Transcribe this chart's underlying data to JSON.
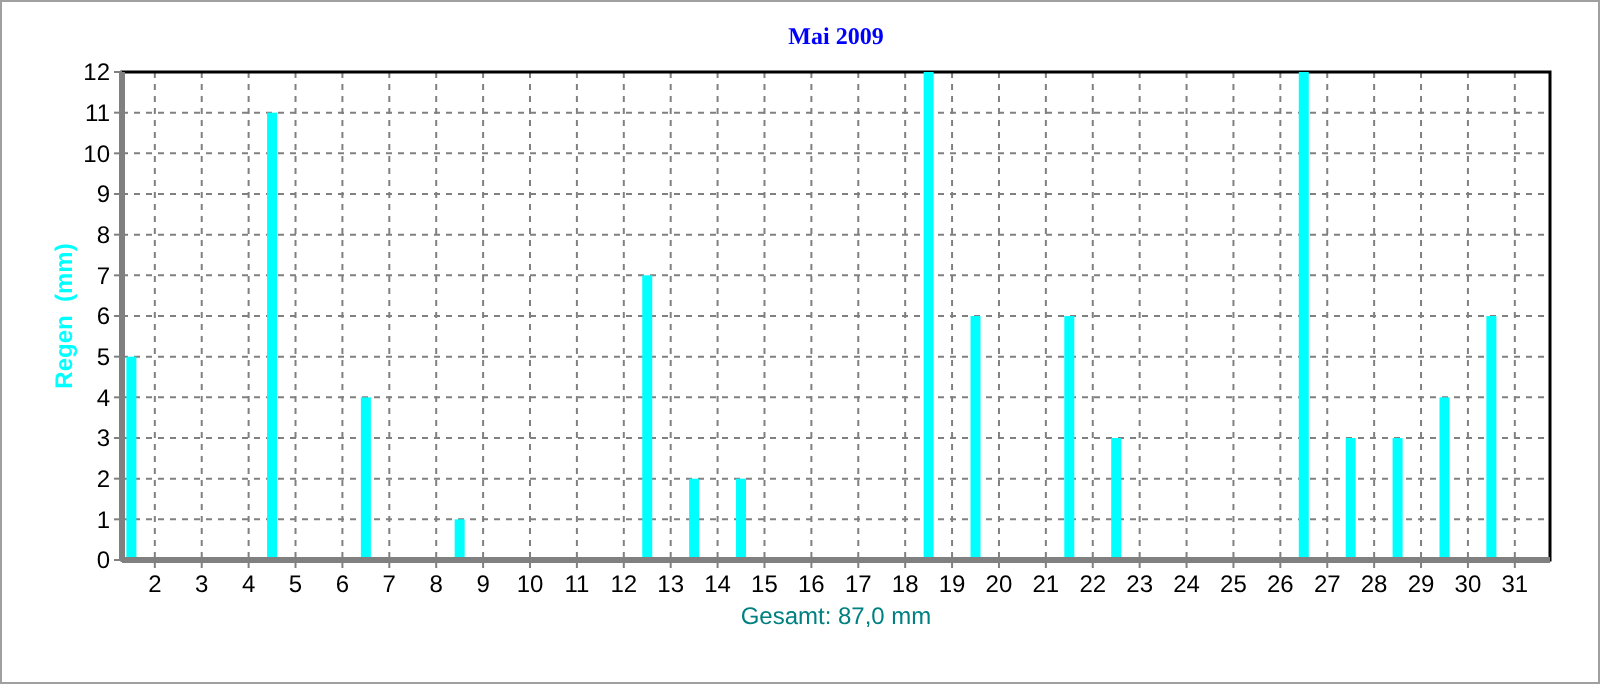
{
  "chart_data": {
    "type": "bar",
    "title": "Mai 2009",
    "xlabel": "Gesamt: 87,0 mm",
    "ylabel": "Regen  (mm)",
    "x": [
      1.5,
      2.5,
      3.5,
      4.5,
      5.5,
      6.5,
      7.5,
      8.5,
      9.5,
      10.5,
      11.5,
      12.5,
      13.5,
      14.5,
      15.5,
      16.5,
      17.5,
      18.5,
      19.5,
      20.5,
      21.5,
      22.5,
      23.5,
      24.5,
      25.5,
      26.5,
      27.5,
      28.5,
      29.5,
      30.5,
      31.5
    ],
    "series": [
      {
        "color": "#00ffff",
        "values": [
          5,
          0,
          0,
          11,
          0,
          4,
          0,
          1,
          0,
          0,
          0,
          7,
          2,
          2,
          0,
          0,
          0,
          12,
          6,
          0,
          6,
          3,
          0,
          0,
          0,
          12,
          3,
          3,
          4,
          6,
          0
        ]
      }
    ],
    "xlim": [
      1.3,
      31.75
    ],
    "xticks": [
      2,
      3,
      4,
      5,
      6,
      7,
      8,
      9,
      10,
      11,
      12,
      13,
      14,
      15,
      16,
      17,
      18,
      19,
      20,
      21,
      22,
      23,
      24,
      25,
      26,
      27,
      28,
      29,
      30,
      31
    ],
    "ylim": [
      0,
      12
    ],
    "yticks": [
      0,
      1,
      2,
      3,
      4,
      5,
      6,
      7,
      8,
      9,
      10,
      11,
      12
    ],
    "grid": true
  }
}
